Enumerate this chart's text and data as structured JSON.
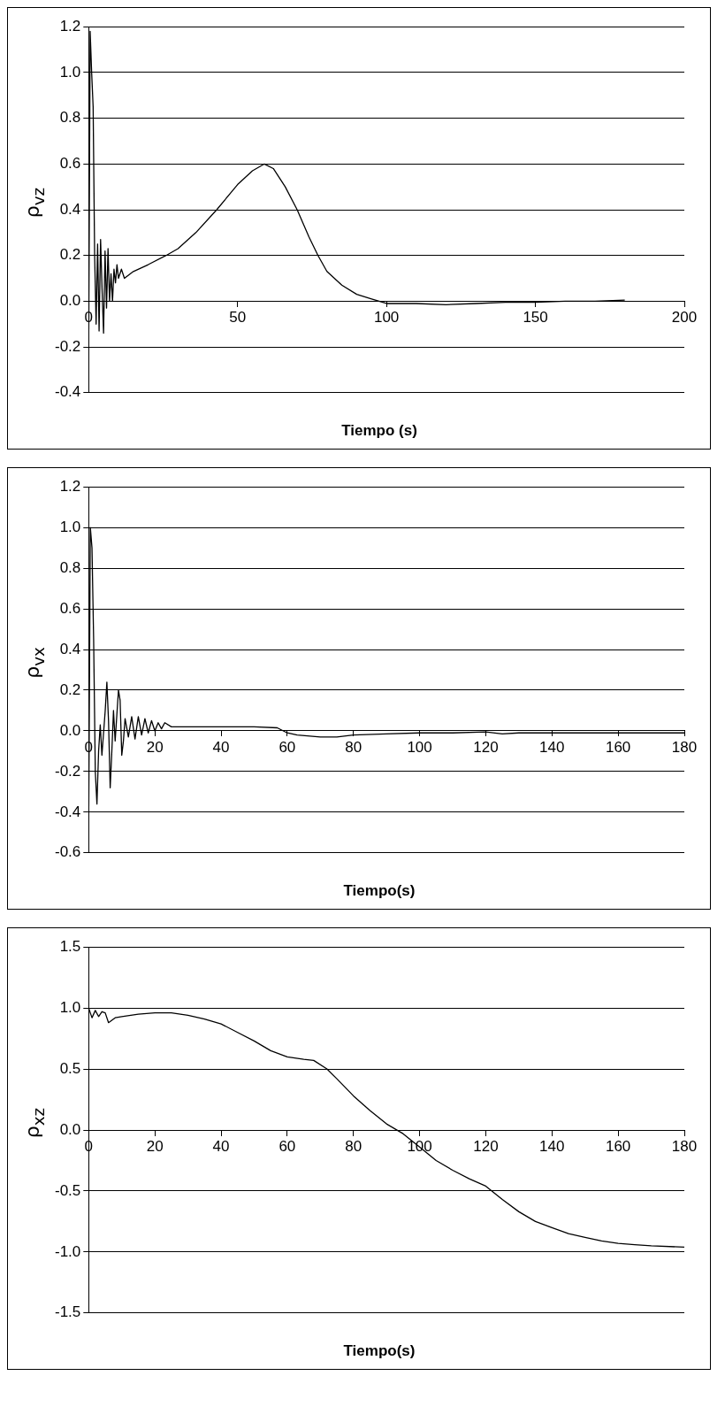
{
  "chart_data": [
    {
      "type": "line",
      "ylabel": "ρ$_{vz}$",
      "xlabel": "Tiempo (s)",
      "grid": "y",
      "xlim": [
        0,
        200
      ],
      "xticks": [
        0,
        50,
        100,
        150,
        200
      ],
      "ylim": [
        -0.4,
        1.2
      ],
      "yticks": [
        -0.4,
        -0.2,
        {
          "value": 0,
          "label": "0.0"
        },
        0.2,
        0.4,
        0.6,
        0.8,
        {
          "value": 1,
          "label": "1.0"
        },
        1.2
      ],
      "x": [
        0,
        0.5,
        1,
        1.5,
        2,
        2.5,
        3,
        3.5,
        4,
        4.5,
        5,
        5.5,
        6,
        6.5,
        7,
        7.5,
        8,
        8.5,
        9,
        9.5,
        10,
        11,
        12,
        15,
        20,
        26,
        30,
        36,
        43,
        50,
        55,
        59,
        62,
        66,
        70,
        74,
        77,
        80,
        85,
        90,
        95,
        100,
        110,
        120,
        130,
        140,
        150,
        160,
        170,
        180
      ],
      "series": [
        {
          "color": "#000000",
          "values": [
            -0.2,
            1.18,
            1.0,
            0.85,
            0.2,
            -0.1,
            0.25,
            -0.13,
            0.27,
            0.05,
            -0.14,
            0.22,
            -0.03,
            0.23,
            0.0,
            0.12,
            0.0,
            0.14,
            0.08,
            0.16,
            0.1,
            0.14,
            0.1,
            0.13,
            0.16,
            0.2,
            0.23,
            0.3,
            0.4,
            0.51,
            0.57,
            0.6,
            0.58,
            0.5,
            0.4,
            0.28,
            0.2,
            0.13,
            0.07,
            0.03,
            0.01,
            -0.01,
            -0.01,
            -0.015,
            -0.01,
            -0.005,
            -0.005,
            0.0,
            0.0,
            0.005
          ]
        }
      ]
    },
    {
      "type": "line",
      "ylabel": "ρ$_{vx}$",
      "xlabel": "Tiempo(s)",
      "grid": "y",
      "xlim": [
        0,
        180
      ],
      "xticks": [
        0,
        20,
        40,
        60,
        80,
        100,
        120,
        140,
        160,
        180
      ],
      "ylim": [
        -0.6,
        1.2
      ],
      "yticks": [
        -0.6,
        -0.4,
        -0.2,
        {
          "value": 0,
          "label": "0.0"
        },
        0.2,
        0.4,
        0.6,
        0.8,
        {
          "value": 1,
          "label": "1.0"
        },
        1.2
      ],
      "x": [
        0,
        0.5,
        1,
        1.5,
        2,
        2.5,
        3,
        3.5,
        4,
        5,
        5.5,
        6,
        6.5,
        7,
        7.5,
        8,
        9,
        9.5,
        10,
        10.5,
        11,
        12,
        13,
        14,
        15,
        16,
        17,
        18,
        19,
        20,
        21,
        22,
        23,
        25,
        30,
        40,
        50,
        57,
        60,
        63,
        70,
        75,
        80,
        90,
        100,
        110,
        120,
        125,
        130,
        140,
        150,
        160,
        170,
        180
      ],
      "series": [
        {
          "color": "#000000",
          "values": [
            -0.45,
            1.0,
            0.9,
            0.45,
            -0.2,
            -0.36,
            -0.1,
            0.03,
            -0.12,
            0.1,
            0.24,
            0.05,
            -0.28,
            -0.1,
            0.1,
            -0.05,
            0.2,
            0.15,
            -0.12,
            -0.05,
            0.06,
            -0.03,
            0.07,
            -0.04,
            0.07,
            -0.02,
            0.06,
            -0.01,
            0.05,
            0.0,
            0.04,
            0.01,
            0.04,
            0.02,
            0.02,
            0.02,
            0.02,
            0.015,
            -0.01,
            -0.02,
            -0.03,
            -0.03,
            -0.02,
            -0.015,
            -0.01,
            -0.01,
            -0.005,
            -0.015,
            -0.01,
            -0.01,
            -0.01,
            -0.01,
            -0.01,
            -0.01
          ]
        }
      ]
    },
    {
      "type": "line",
      "ylabel": "ρ$_{xz}$",
      "xlabel": "Tiempo(s)",
      "grid": "y",
      "xlim": [
        0,
        180
      ],
      "xticks": [
        0,
        20,
        40,
        60,
        80,
        100,
        120,
        140,
        160,
        180
      ],
      "ylim": [
        -1.5,
        1.5
      ],
      "yticks": [
        -1.5,
        {
          "value": -1,
          "label": "-1.0"
        },
        -0.5,
        {
          "value": 0,
          "label": "0.0"
        },
        0.5,
        {
          "value": 1,
          "label": "1.0"
        },
        1.5
      ],
      "x": [
        0,
        1,
        2,
        3,
        4,
        5,
        6,
        8,
        10,
        15,
        20,
        25,
        30,
        35,
        40,
        45,
        50,
        55,
        60,
        65,
        68,
        72,
        75,
        80,
        85,
        90,
        95,
        100,
        105,
        110,
        115,
        120,
        125,
        130,
        135,
        140,
        145,
        150,
        155,
        160,
        165,
        170,
        180
      ],
      "series": [
        {
          "color": "#000000",
          "values": [
            1.0,
            0.92,
            0.98,
            0.93,
            0.97,
            0.96,
            0.88,
            0.92,
            0.93,
            0.95,
            0.96,
            0.96,
            0.94,
            0.91,
            0.87,
            0.8,
            0.73,
            0.65,
            0.6,
            0.58,
            0.57,
            0.5,
            0.42,
            0.28,
            0.16,
            0.05,
            -0.03,
            -0.14,
            -0.25,
            -0.33,
            -0.4,
            -0.46,
            -0.57,
            -0.67,
            -0.75,
            -0.8,
            -0.85,
            -0.88,
            -0.91,
            -0.93,
            -0.94,
            -0.95,
            -0.96
          ]
        }
      ]
    }
  ]
}
